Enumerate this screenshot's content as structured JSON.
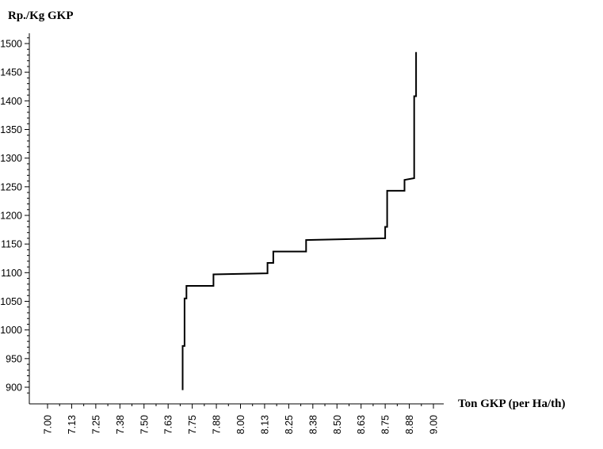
{
  "chart_data": {
    "type": "line",
    "title": "",
    "ylabel": "Rp./Kg GKP",
    "xlabel": "Ton GKP (per Ha/th)",
    "xlim": [
      7.0,
      9.0
    ],
    "ylim": [
      885,
      1510
    ],
    "x_ticks": [
      "7.00",
      "7.13",
      "7.25",
      "7.38",
      "7.50",
      "7.63",
      "7.75",
      "7.88",
      "8.00",
      "8.13",
      "8.25",
      "8.38",
      "8.50",
      "8.63",
      "8.75",
      "8.88",
      "9.00"
    ],
    "y_ticks": [
      900,
      950,
      1000,
      1050,
      1100,
      1150,
      1200,
      1250,
      1300,
      1350,
      1400,
      1450,
      1500
    ],
    "grid": false,
    "series": [
      {
        "x": [
          7.7,
          7.7,
          7.71,
          7.71,
          7.72,
          7.72,
          7.72,
          7.72,
          7.86,
          7.86,
          8.14,
          8.14,
          8.17,
          8.17,
          8.34,
          8.34,
          8.75,
          8.75,
          8.76,
          8.76,
          8.85,
          8.85,
          8.9,
          8.9,
          8.9,
          8.9,
          8.91,
          8.91
        ],
        "y": [
          895,
          972,
          972,
          1055,
          1055,
          1067,
          1067,
          1077,
          1077,
          1097,
          1099,
          1117,
          1117,
          1137,
          1137,
          1157,
          1160,
          1180,
          1180,
          1243,
          1243,
          1262,
          1265,
          1305,
          1305,
          1408,
          1408,
          1485
        ],
        "color": "#000000"
      }
    ]
  }
}
